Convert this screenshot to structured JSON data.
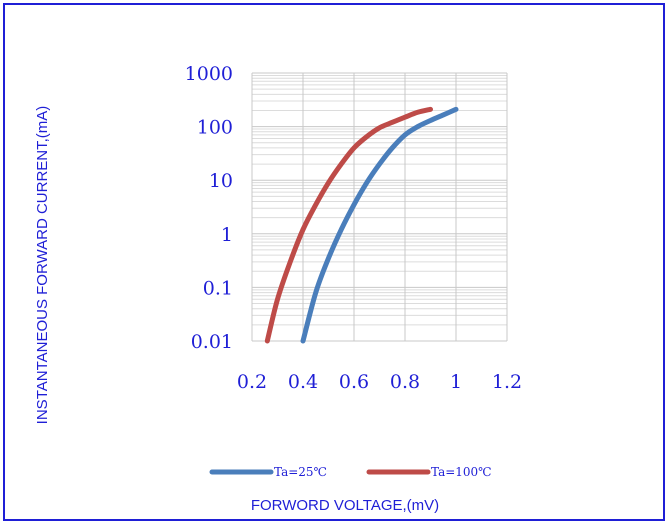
{
  "chart_data": {
    "type": "line",
    "title": "",
    "xlabel": "FORWORD VOLTAGE,(mV)",
    "ylabel": "INSTANTANEOUS FORWARD CURRENT,(mA)",
    "x_ticks": [
      "0.2",
      "0.4",
      "0.6",
      "0.8",
      "1",
      "1.2"
    ],
    "x_tick_values": [
      0.2,
      0.4,
      0.6,
      0.8,
      1.0,
      1.2
    ],
    "y_ticks": [
      "0.01",
      "0.1",
      "1",
      "10",
      "100",
      "1000"
    ],
    "y_tick_values": [
      0.01,
      0.1,
      1,
      10,
      100,
      1000
    ],
    "xlim": [
      0.2,
      1.2
    ],
    "ylim": [
      0.01,
      1000
    ],
    "y_scale": "log",
    "grid": true,
    "legend_position": "bottom",
    "series": [
      {
        "name": "Ta=25℃",
        "color": "#4a7ebb",
        "points": [
          [
            0.4,
            0.01
          ],
          [
            0.45,
            0.08
          ],
          [
            0.5,
            0.35
          ],
          [
            0.55,
            1.2
          ],
          [
            0.6,
            3.5
          ],
          [
            0.65,
            9
          ],
          [
            0.7,
            20
          ],
          [
            0.75,
            40
          ],
          [
            0.8,
            70
          ],
          [
            0.85,
            100
          ],
          [
            0.9,
            130
          ],
          [
            0.95,
            165
          ],
          [
            1.0,
            210
          ]
        ]
      },
      {
        "name": "Ta=100℃",
        "color": "#be4b48",
        "points": [
          [
            0.26,
            0.01
          ],
          [
            0.3,
            0.06
          ],
          [
            0.35,
            0.3
          ],
          [
            0.4,
            1.2
          ],
          [
            0.45,
            3.5
          ],
          [
            0.5,
            9
          ],
          [
            0.55,
            20
          ],
          [
            0.6,
            40
          ],
          [
            0.65,
            65
          ],
          [
            0.7,
            95
          ],
          [
            0.75,
            120
          ],
          [
            0.8,
            150
          ],
          [
            0.85,
            185
          ],
          [
            0.9,
            210
          ]
        ]
      }
    ]
  }
}
